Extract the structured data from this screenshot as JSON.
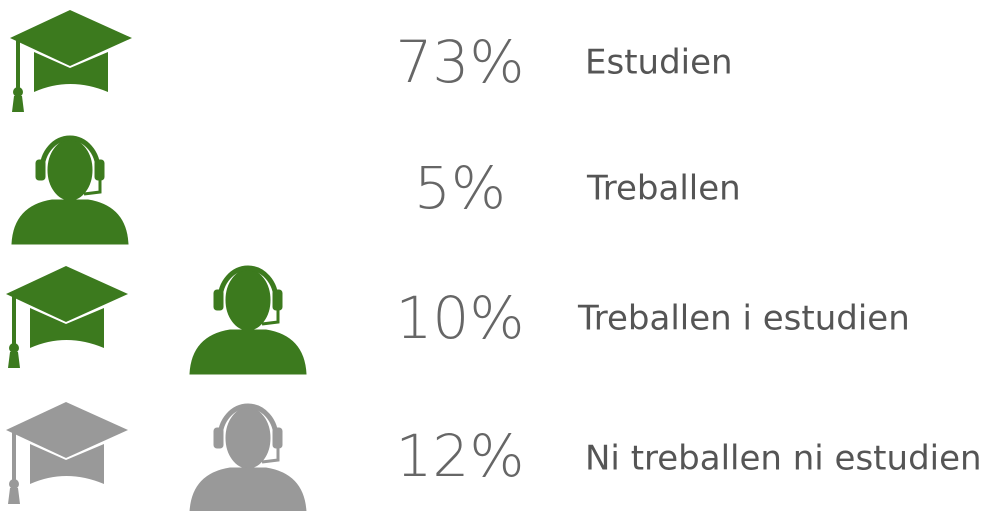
{
  "rows": [
    {
      "value_label": "73%",
      "label": "Estudien"
    },
    {
      "value_label": "5%",
      "label": "Treballen"
    },
    {
      "value_label": "10%",
      "label": "Treballen i estudien"
    },
    {
      "value_label": "12%",
      "label": "Ni treballen ni estudien"
    }
  ]
}
